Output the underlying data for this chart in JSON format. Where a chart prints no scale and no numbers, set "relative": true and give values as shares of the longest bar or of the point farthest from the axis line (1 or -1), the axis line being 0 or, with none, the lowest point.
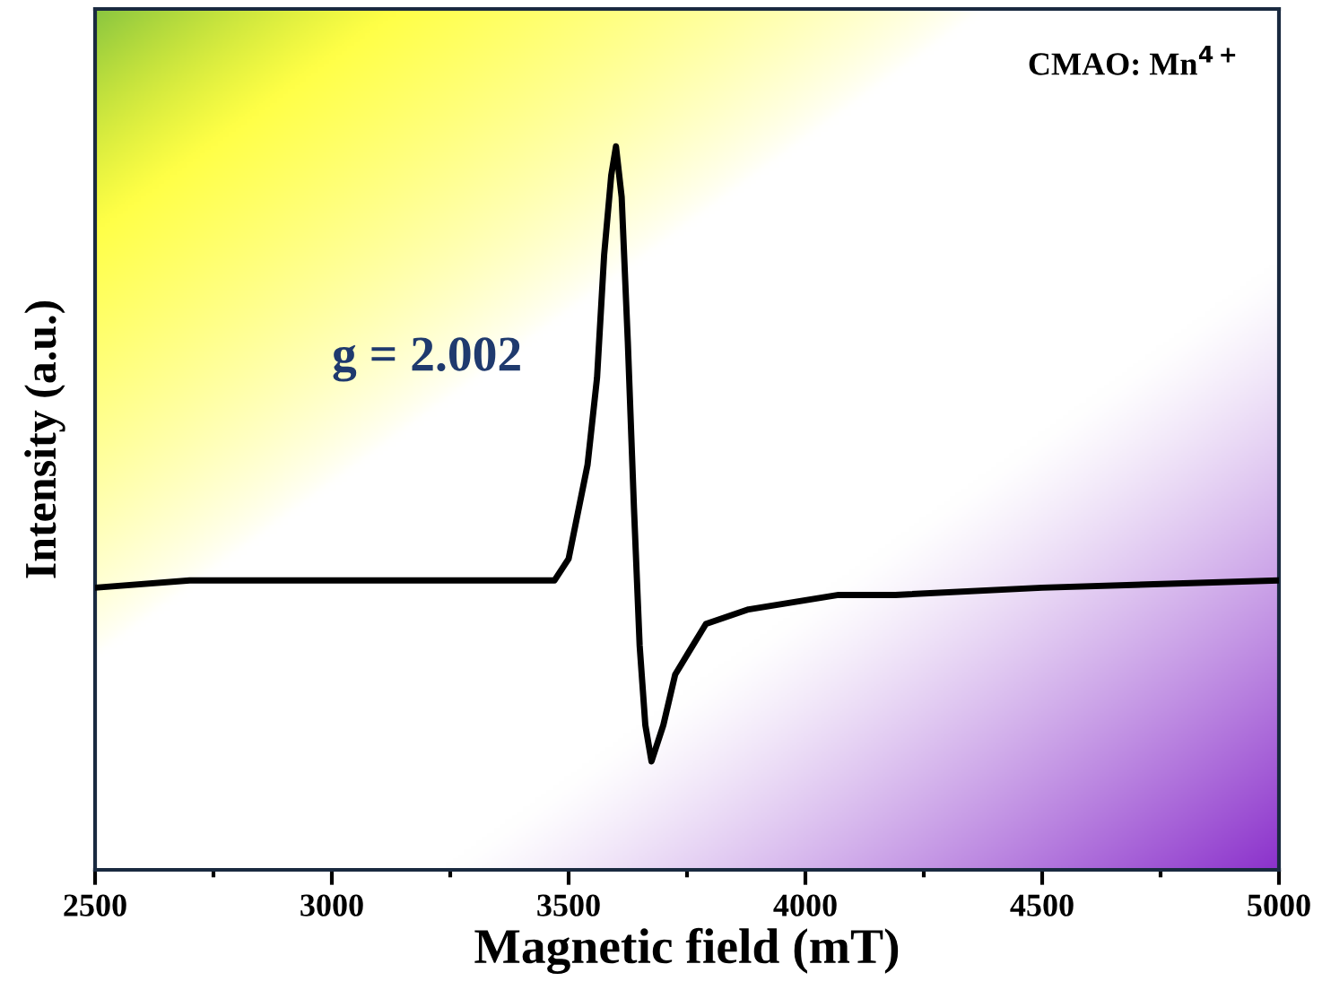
{
  "chart_data": {
    "type": "line",
    "relative": true,
    "xlabel": "Magnetic field (mT)",
    "ylabel": "Intensity (a.u.)",
    "x": [
      2500,
      2700,
      3000,
      3300,
      3400,
      3470,
      3500,
      3540,
      3560,
      3575,
      3590,
      3600,
      3612,
      3625,
      3638,
      3650,
      3662,
      3675,
      3700,
      3725,
      3790,
      3880,
      4070,
      4190,
      4500,
      5000
    ],
    "series": [
      {
        "color": "#000000",
        "values": [
          0.39,
          0.4,
          0.4,
          0.4,
          0.4,
          0.4,
          0.43,
          0.56,
          0.68,
          0.85,
          0.96,
          1.0,
          0.93,
          0.73,
          0.5,
          0.31,
          0.2,
          0.15,
          0.2,
          0.27,
          0.34,
          0.36,
          0.38,
          0.38,
          0.39,
          0.4
        ]
      }
    ],
    "xlim": [
      2500,
      5000
    ],
    "xticks": [
      2500,
      3000,
      3500,
      4000,
      4500,
      5000
    ],
    "tick_labels": "x",
    "grid": false,
    "annotations": [
      "g = 2.002",
      "CMAO: Mn$^{4+}$"
    ]
  }
}
